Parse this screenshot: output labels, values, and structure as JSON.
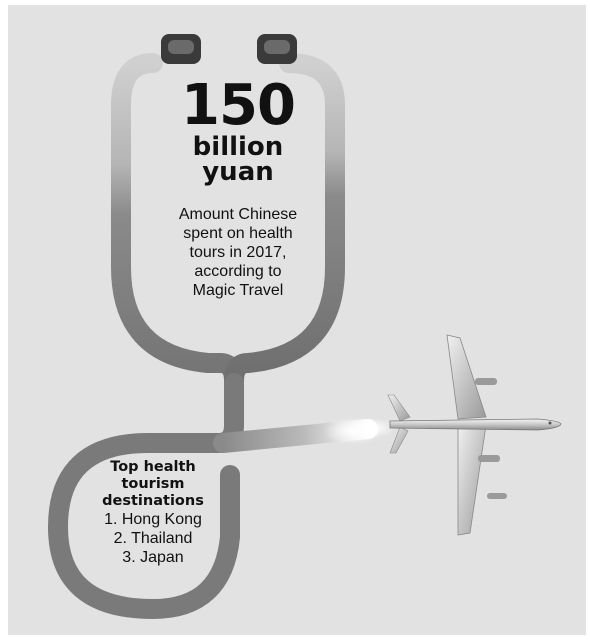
{
  "headline": {
    "value": "150",
    "unit_lines": [
      "billion",
      "yuan"
    ]
  },
  "description_lines": [
    "Amount Chinese",
    "spent on health",
    "tours in 2017,",
    "according to",
    "Magic Travel"
  ],
  "destinations": {
    "title_lines": [
      "Top health",
      "tourism",
      "destinations"
    ],
    "items": [
      "1. Hong Kong",
      "2. Thailand",
      "3. Japan"
    ]
  },
  "icons": {
    "stethoscope": "stethoscope-tube-icon",
    "earpieces": "stethoscope-earpiece-icon",
    "airplane": "airplane-icon"
  },
  "colors": {
    "panel_bg": "#e2e2e2",
    "tube_dark": "#7a7a7a",
    "tube_light": "#d0d0d0",
    "text": "#111111"
  }
}
